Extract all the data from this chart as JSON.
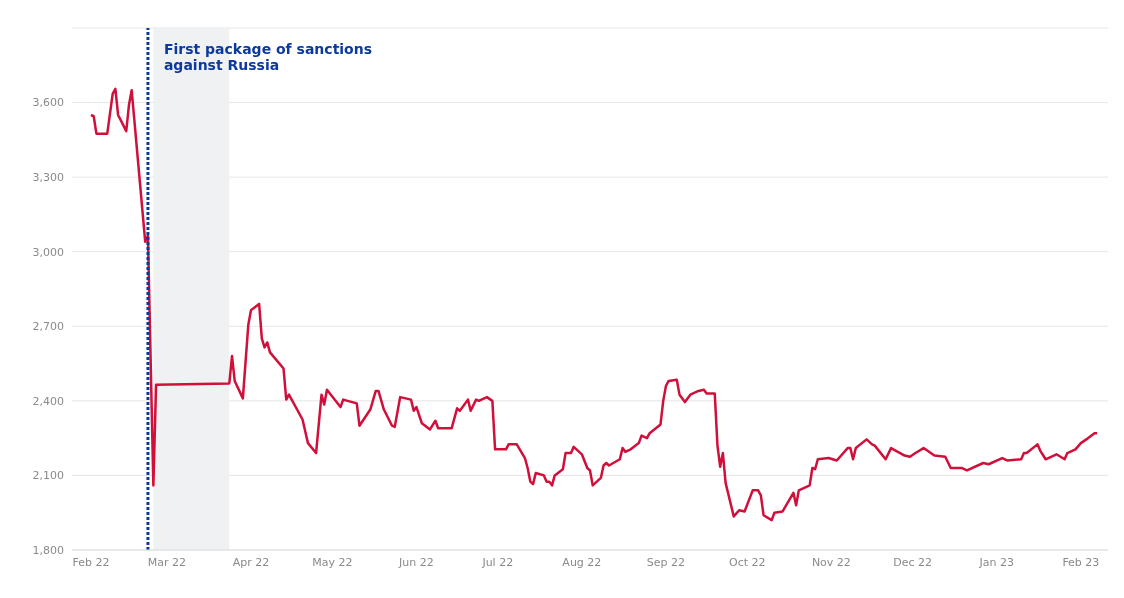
{
  "chart_data": {
    "type": "line",
    "x": [
      "2022-02-01",
      "2022-02-02",
      "2022-02-03",
      "2022-02-07",
      "2022-02-09",
      "2022-02-10",
      "2022-02-11",
      "2022-02-14",
      "2022-02-15",
      "2022-02-16",
      "2022-02-21",
      "2022-02-22",
      "2022-02-24",
      "2022-02-25",
      "2022-03-24",
      "2022-03-25",
      "2022-03-26",
      "2022-03-29",
      "2022-03-31",
      "2022-04-01",
      "2022-04-04",
      "2022-04-05",
      "2022-04-06",
      "2022-04-07",
      "2022-04-08",
      "2022-04-13",
      "2022-04-14",
      "2022-04-15",
      "2022-04-20",
      "2022-04-22",
      "2022-04-25",
      "2022-04-27",
      "2022-04-28",
      "2022-04-29",
      "2022-05-04",
      "2022-05-05",
      "2022-05-10",
      "2022-05-11",
      "2022-05-15",
      "2022-05-17",
      "2022-05-18",
      "2022-05-20",
      "2022-05-23",
      "2022-05-24",
      "2022-05-26",
      "2022-05-30",
      "2022-05-31",
      "2022-06-01",
      "2022-06-03",
      "2022-06-06",
      "2022-06-08",
      "2022-06-09",
      "2022-06-14",
      "2022-06-16",
      "2022-06-17",
      "2022-06-20",
      "2022-06-21",
      "2022-06-23",
      "2022-06-24",
      "2022-06-27",
      "2022-06-29",
      "2022-06-30",
      "2022-07-04",
      "2022-07-05",
      "2022-07-08",
      "2022-07-11",
      "2022-07-12",
      "2022-07-13",
      "2022-07-14",
      "2022-07-15",
      "2022-07-18",
      "2022-07-19",
      "2022-07-20",
      "2022-07-21",
      "2022-07-22",
      "2022-07-25",
      "2022-07-26",
      "2022-07-28",
      "2022-07-29",
      "2022-08-01",
      "2022-08-03",
      "2022-08-04",
      "2022-08-05",
      "2022-08-08",
      "2022-08-09",
      "2022-08-10",
      "2022-08-11",
      "2022-08-15",
      "2022-08-16",
      "2022-08-17",
      "2022-08-19",
      "2022-08-22",
      "2022-08-23",
      "2022-08-25",
      "2022-08-26",
      "2022-08-30",
      "2022-08-31",
      "2022-09-01",
      "2022-09-02",
      "2022-09-05",
      "2022-09-06",
      "2022-09-08",
      "2022-09-10",
      "2022-09-13",
      "2022-09-15",
      "2022-09-16",
      "2022-09-19",
      "2022-09-20",
      "2022-09-21",
      "2022-09-22",
      "2022-09-23",
      "2022-09-26",
      "2022-09-28",
      "2022-09-30",
      "2022-10-03",
      "2022-10-05",
      "2022-10-06",
      "2022-10-07",
      "2022-10-10",
      "2022-10-11",
      "2022-10-14",
      "2022-10-18",
      "2022-10-19",
      "2022-10-20",
      "2022-10-24",
      "2022-10-25",
      "2022-10-26",
      "2022-10-27",
      "2022-10-31",
      "2022-11-03",
      "2022-11-07",
      "2022-11-08",
      "2022-11-09",
      "2022-11-10",
      "2022-11-14",
      "2022-11-16",
      "2022-11-17",
      "2022-11-21",
      "2022-11-23",
      "2022-11-28",
      "2022-11-30",
      "2022-12-02",
      "2022-12-05",
      "2022-12-09",
      "2022-12-13",
      "2022-12-15",
      "2022-12-19",
      "2022-12-21",
      "2022-12-27",
      "2022-12-29",
      "2023-01-03",
      "2023-01-05",
      "2023-01-10",
      "2023-01-11",
      "2023-01-12",
      "2023-01-16",
      "2023-01-17",
      "2023-01-19",
      "2023-01-23",
      "2023-01-26",
      "2023-01-27",
      "2023-01-30",
      "2023-02-01",
      "2023-02-03",
      "2023-02-06",
      "2023-02-07"
    ],
    "series": [
      {
        "color": "#d0103a",
        "values": [
          3550,
          3545,
          3475,
          3475,
          3635,
          3655,
          3550,
          3485,
          3590,
          3650,
          3040,
          3065,
          2060,
          2465,
          2470,
          2580,
          2480,
          2410,
          2705,
          2765,
          2790,
          2650,
          2615,
          2635,
          2595,
          2530,
          2405,
          2425,
          2325,
          2230,
          2190,
          2425,
          2385,
          2445,
          2375,
          2405,
          2390,
          2300,
          2365,
          2440,
          2440,
          2365,
          2300,
          2295,
          2415,
          2405,
          2360,
          2375,
          2310,
          2285,
          2320,
          2290,
          2290,
          2370,
          2360,
          2405,
          2360,
          2405,
          2400,
          2415,
          2400,
          2205,
          2205,
          2225,
          2225,
          2170,
          2130,
          2075,
          2065,
          2110,
          2100,
          2075,
          2075,
          2060,
          2100,
          2125,
          2190,
          2190,
          2215,
          2185,
          2130,
          2120,
          2060,
          2090,
          2140,
          2150,
          2140,
          2165,
          2210,
          2195,
          2205,
          2230,
          2260,
          2250,
          2270,
          2305,
          2400,
          2460,
          2480,
          2485,
          2425,
          2395,
          2425,
          2440,
          2445,
          2430,
          2430,
          2220,
          2135,
          2190,
          2070,
          1935,
          1960,
          1955,
          2040,
          2040,
          2020,
          1940,
          1920,
          1950,
          1955,
          2030,
          1980,
          2040,
          2060,
          2130,
          2125,
          2165,
          2170,
          2160,
          2210,
          2210,
          2165,
          2210,
          2245,
          2225,
          2220,
          2165,
          2210,
          2180,
          2175,
          2190,
          2210,
          2180,
          2175,
          2130,
          2130,
          2120,
          2150,
          2145,
          2170,
          2160,
          2165,
          2190,
          2190,
          2225,
          2200,
          2165,
          2185,
          2165,
          2190,
          2205,
          2230,
          2245,
          2270,
          2270
        ]
      }
    ],
    "xlim": [
      "2022-01-25",
      "2023-02-11"
    ],
    "xticks": [
      {
        "value": "2022-02-01",
        "label": "Feb 22"
      },
      {
        "value": "2022-03-01",
        "label": "Mar 22"
      },
      {
        "value": "2022-04-01",
        "label": "Apr 22"
      },
      {
        "value": "2022-05-01",
        "label": "May 22"
      },
      {
        "value": "2022-06-01",
        "label": "Jun 22"
      },
      {
        "value": "2022-07-01",
        "label": "Jul 22"
      },
      {
        "value": "2022-08-01",
        "label": "Aug 22"
      },
      {
        "value": "2022-09-01",
        "label": "Sep 22"
      },
      {
        "value": "2022-10-01",
        "label": "Oct 22"
      },
      {
        "value": "2022-11-01",
        "label": "Nov 22"
      },
      {
        "value": "2022-12-01",
        "label": "Dec 22"
      },
      {
        "value": "2023-01-01",
        "label": "Jan 23"
      },
      {
        "value": "2023-02-01",
        "label": "Feb 23"
      }
    ],
    "ylim": [
      1800,
      3900
    ],
    "yticks": [
      {
        "value": 1800,
        "label": "1,800"
      },
      {
        "value": 2100,
        "label": "2,100"
      },
      {
        "value": 2400,
        "label": "2,400"
      },
      {
        "value": 2700,
        "label": "2,700"
      },
      {
        "value": 3000,
        "label": "3,000"
      },
      {
        "value": 3300,
        "label": "3,300"
      },
      {
        "value": 3600,
        "label": "3,600"
      }
    ],
    "grid": "y",
    "ref_lines": [
      {
        "axis": "x",
        "value": "2022-02-22",
        "label": "First package of sanctions against Russia",
        "color": "#0b3a9c",
        "line_style": "dotted"
      }
    ],
    "bands": [
      {
        "axis": "x",
        "from": "2022-02-24",
        "to": "2022-03-24",
        "color": "#f0f1f3"
      }
    ]
  }
}
